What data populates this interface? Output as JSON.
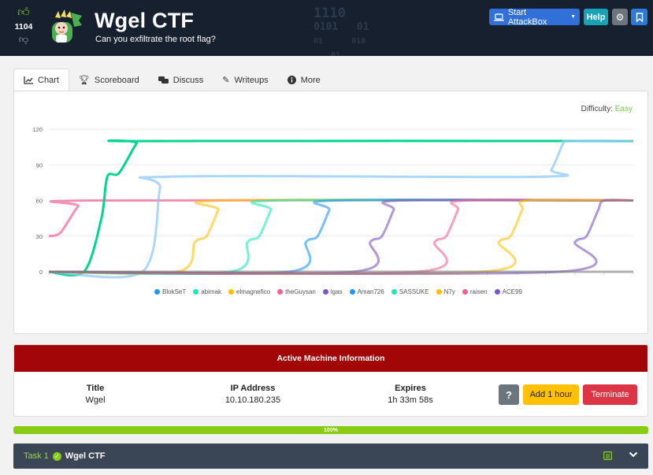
{
  "header": {
    "upvote_icon": "thumbs-up-icon",
    "vote_count": "1104",
    "downvote_icon": "thumbs-down-icon",
    "title": "Wgel CTF",
    "subtitle": "Can you exfiltrate the root flag?",
    "binary_lines": [
      "1110",
      "0101   01",
      "01      010",
      "01"
    ],
    "attackbox_label": "Start AttackBox",
    "help_label": "Help",
    "colors": {
      "background": "#16202f",
      "attackbox": "#3070d8",
      "help": "#17a2b8"
    }
  },
  "tabs": [
    {
      "label": "Chart",
      "icon": "line-chart-icon",
      "active": true
    },
    {
      "label": "Scoreboard",
      "icon": "trophy-icon"
    },
    {
      "label": "Discuss",
      "icon": "comments-icon"
    },
    {
      "label": "Writeups",
      "icon": "pencil-icon"
    },
    {
      "label": "More",
      "icon": "info-circle-icon"
    }
  ],
  "difficulty": {
    "label": "Difficulty:",
    "value": "Easy",
    "color": "#7ac74f"
  },
  "chart_data": {
    "type": "line",
    "title": "",
    "xlabel": "",
    "ylabel": "",
    "yticks": [
      "120",
      "90",
      "60",
      "30",
      "0"
    ],
    "ylim": [
      0,
      120
    ],
    "xlim": [
      0,
      100
    ],
    "grid": true,
    "legend_position": "bottom",
    "series": [
      {
        "name": "BlokSeT",
        "color": "#2196f3"
      },
      {
        "name": "abimak",
        "color": "#1de9b6"
      },
      {
        "name": "elmagnefico",
        "color": "#ffc107"
      },
      {
        "name": "theGuysan",
        "color": "#f06292"
      },
      {
        "name": "lgas",
        "color": "#7e57c2"
      },
      {
        "name": "Aman726",
        "color": "#2196f3"
      },
      {
        "name": "SASSUKE",
        "color": "#1de9b6"
      },
      {
        "name": "N7y",
        "color": "#ffc107"
      },
      {
        "name": "raisen",
        "color": "#f06292"
      },
      {
        "name": "ACE99",
        "color": "#7e57c2"
      }
    ],
    "lines": [
      {
        "color": "#f06292",
        "opacity": 0.7,
        "points": [
          [
            0,
            30
          ],
          [
            2,
            33
          ],
          [
            5,
            55
          ],
          [
            7,
            60
          ],
          [
            100,
            60
          ]
        ]
      },
      {
        "color": "#00d68f",
        "opacity": 1,
        "points": [
          [
            0,
            0
          ],
          [
            6,
            0
          ],
          [
            9,
            45
          ],
          [
            10,
            80
          ],
          [
            12,
            83
          ],
          [
            15,
            108
          ],
          [
            16,
            110
          ],
          [
            100,
            110
          ]
        ]
      },
      {
        "color": "#90caf9",
        "opacity": 0.75,
        "points": [
          [
            0,
            0
          ],
          [
            16,
            0
          ],
          [
            19,
            70
          ],
          [
            20,
            80
          ],
          [
            84,
            80
          ],
          [
            86,
            86
          ],
          [
            88,
            108
          ],
          [
            89,
            110
          ],
          [
            100,
            110
          ]
        ]
      },
      {
        "color": "#ffc107",
        "opacity": 0.6,
        "points": [
          [
            0,
            0
          ],
          [
            22,
            0
          ],
          [
            25,
            25
          ],
          [
            27,
            30
          ],
          [
            29,
            52
          ],
          [
            30,
            60
          ],
          [
            100,
            60
          ]
        ]
      },
      {
        "color": "#1de9b6",
        "opacity": 0.6,
        "points": [
          [
            0,
            0
          ],
          [
            31,
            0
          ],
          [
            34,
            25
          ],
          [
            36,
            30
          ],
          [
            38,
            52
          ],
          [
            39,
            60
          ],
          [
            100,
            60
          ]
        ]
      },
      {
        "color": "#2196f3",
        "opacity": 0.6,
        "points": [
          [
            0,
            0
          ],
          [
            41,
            0
          ],
          [
            44,
            25
          ],
          [
            46,
            30
          ],
          [
            48,
            52
          ],
          [
            49,
            60
          ],
          [
            100,
            60
          ]
        ]
      },
      {
        "color": "#7e57c2",
        "opacity": 0.6,
        "points": [
          [
            0,
            0
          ],
          [
            52,
            0
          ],
          [
            55,
            25
          ],
          [
            57,
            30
          ],
          [
            59,
            52
          ],
          [
            60,
            60
          ],
          [
            100,
            60
          ]
        ]
      },
      {
        "color": "#f06292",
        "opacity": 0.6,
        "points": [
          [
            0,
            0
          ],
          [
            63,
            0
          ],
          [
            66,
            25
          ],
          [
            68,
            30
          ],
          [
            70,
            52
          ],
          [
            71,
            60
          ],
          [
            100,
            60
          ]
        ]
      },
      {
        "color": "#ffc107",
        "opacity": 0.6,
        "points": [
          [
            0,
            0
          ],
          [
            74,
            0
          ],
          [
            77,
            25
          ],
          [
            79,
            30
          ],
          [
            81,
            52
          ],
          [
            82,
            60
          ],
          [
            100,
            60
          ]
        ]
      },
      {
        "color": "#7e57c2",
        "opacity": 0.6,
        "points": [
          [
            0,
            0
          ],
          [
            87,
            0
          ],
          [
            90,
            25
          ],
          [
            92,
            30
          ],
          [
            94,
            52
          ],
          [
            95,
            60
          ],
          [
            100,
            60
          ]
        ]
      }
    ]
  },
  "machine": {
    "header": "Active Machine Information",
    "title_label": "Title",
    "title_value": "Wgel",
    "ip_label": "IP Address",
    "ip_value": "10.10.180.235",
    "expires_label": "Expires",
    "expires_value": "1h 33m 58s",
    "help_label": "?",
    "add_hour_label": "Add 1 hour",
    "terminate_label": "Terminate",
    "header_color": "#a20606"
  },
  "progress": {
    "value": 1.0,
    "label": "100%"
  },
  "task": {
    "number": "Task 1",
    "status_icon": "check-circle-icon",
    "name": "Wgel CTF",
    "notes_icon": "notes-icon",
    "expand_icon": "chevron-down-icon"
  }
}
